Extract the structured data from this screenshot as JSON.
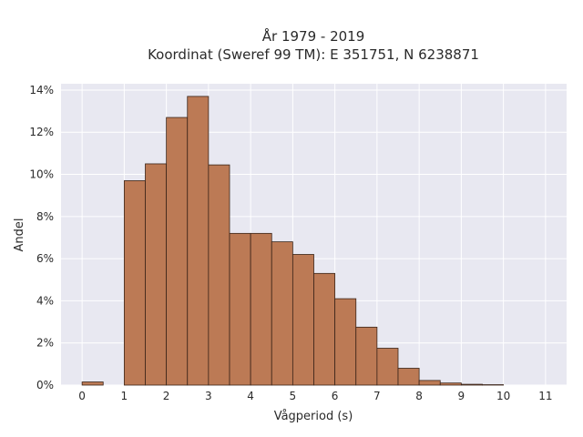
{
  "chart_data": {
    "type": "bar",
    "title_line1": "År 1979 - 2019",
    "title_line2": "Koordinat (Sweref 99 TM): E 351751, N 6238871",
    "xlabel": "Vågperiod (s)",
    "ylabel": "Andel",
    "bin_width": 0.5,
    "bins": [
      {
        "start": 0.0,
        "value": 0.15
      },
      {
        "start": 0.5,
        "value": 0.0
      },
      {
        "start": 1.0,
        "value": 9.7
      },
      {
        "start": 1.5,
        "value": 10.5
      },
      {
        "start": 2.0,
        "value": 12.7
      },
      {
        "start": 2.5,
        "value": 13.7
      },
      {
        "start": 3.0,
        "value": 10.45
      },
      {
        "start": 3.5,
        "value": 7.2
      },
      {
        "start": 4.0,
        "value": 7.2
      },
      {
        "start": 4.5,
        "value": 6.8
      },
      {
        "start": 5.0,
        "value": 6.2
      },
      {
        "start": 5.5,
        "value": 5.3
      },
      {
        "start": 6.0,
        "value": 4.1
      },
      {
        "start": 6.5,
        "value": 2.75
      },
      {
        "start": 7.0,
        "value": 1.75
      },
      {
        "start": 7.5,
        "value": 0.8
      },
      {
        "start": 8.0,
        "value": 0.22
      },
      {
        "start": 8.5,
        "value": 0.1
      },
      {
        "start": 9.0,
        "value": 0.04
      },
      {
        "start": 9.5,
        "value": 0.02
      }
    ],
    "xlim": [
      -0.5,
      11.5
    ],
    "ylim": [
      0,
      14.3
    ],
    "x_ticks": [
      "0",
      "1",
      "2",
      "3",
      "4",
      "5",
      "6",
      "7",
      "8",
      "9",
      "10",
      "11"
    ],
    "y_ticks": [
      "0%",
      "2%",
      "4%",
      "6%",
      "8%",
      "10%",
      "12%",
      "14%"
    ],
    "grid": true,
    "colors": {
      "plot_bg": "#e8e8f1",
      "grid": "#ffffff",
      "bar_fill": "#bc7a55",
      "bar_edge": "#3a2418"
    }
  }
}
